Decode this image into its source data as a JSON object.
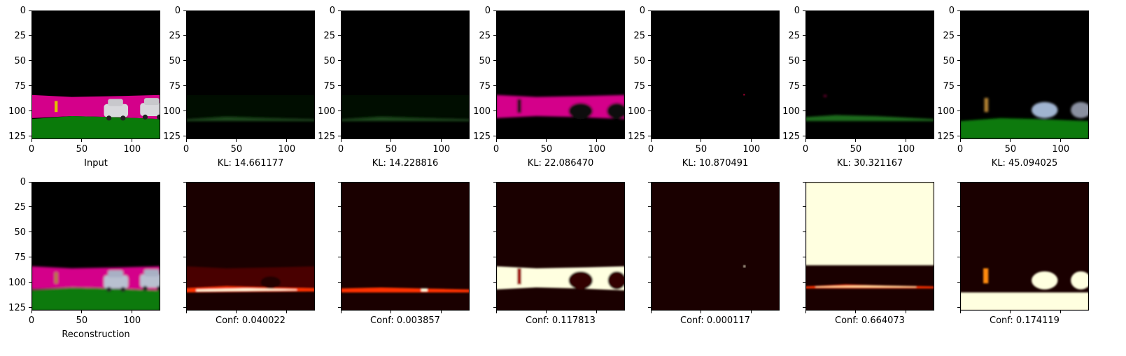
{
  "chart_data": {
    "type": "image-grid",
    "rows": 2,
    "cols": 7,
    "axis": {
      "xlim": [
        0,
        128
      ],
      "ylim": [
        128,
        0
      ],
      "xticks": [
        0,
        50,
        100
      ],
      "yticks": [
        0,
        25,
        50,
        75,
        100,
        125
      ]
    },
    "top_row": [
      {
        "kind": "rgb-segmentation",
        "label": "Input",
        "variant": "input"
      },
      {
        "kind": "rgb-segmentation",
        "label": "KL: 14.661177",
        "variant": "faint-green"
      },
      {
        "kind": "rgb-segmentation",
        "label": "KL: 14.228816",
        "variant": "faint-green"
      },
      {
        "kind": "rgb-segmentation",
        "label": "KL: 22.086470",
        "variant": "road-only"
      },
      {
        "kind": "rgb-segmentation",
        "label": "KL: 10.870491",
        "variant": "dark"
      },
      {
        "kind": "rgb-segmentation",
        "label": "KL: 30.321167",
        "variant": "green-line"
      },
      {
        "kind": "rgb-segmentation",
        "label": "KL: 45.094025",
        "variant": "cars-grass"
      }
    ],
    "bottom_row": [
      {
        "kind": "rgb-segmentation",
        "label": "Reconstruction",
        "variant": "reconstruction"
      },
      {
        "kind": "heatmap",
        "label": "Conf: 0.040022",
        "variant": "lower-band"
      },
      {
        "kind": "heatmap",
        "label": "Conf: 0.003857",
        "variant": "thin-band"
      },
      {
        "kind": "heatmap",
        "label": "Conf: 0.117813",
        "variant": "road-bright"
      },
      {
        "kind": "heatmap",
        "label": "Conf: 0.000117",
        "variant": "dot"
      },
      {
        "kind": "heatmap",
        "label": "Conf: 0.664073",
        "variant": "sky-bright"
      },
      {
        "kind": "heatmap",
        "label": "Conf: 0.174119",
        "variant": "objects-bright"
      }
    ],
    "colors": {
      "road": "#d4008a",
      "grass": "#0a7a0a",
      "sky": "#000000",
      "heat_low": "#1a0000",
      "heat_mid": "#ff3300",
      "heat_high": "#ffffe0"
    }
  }
}
